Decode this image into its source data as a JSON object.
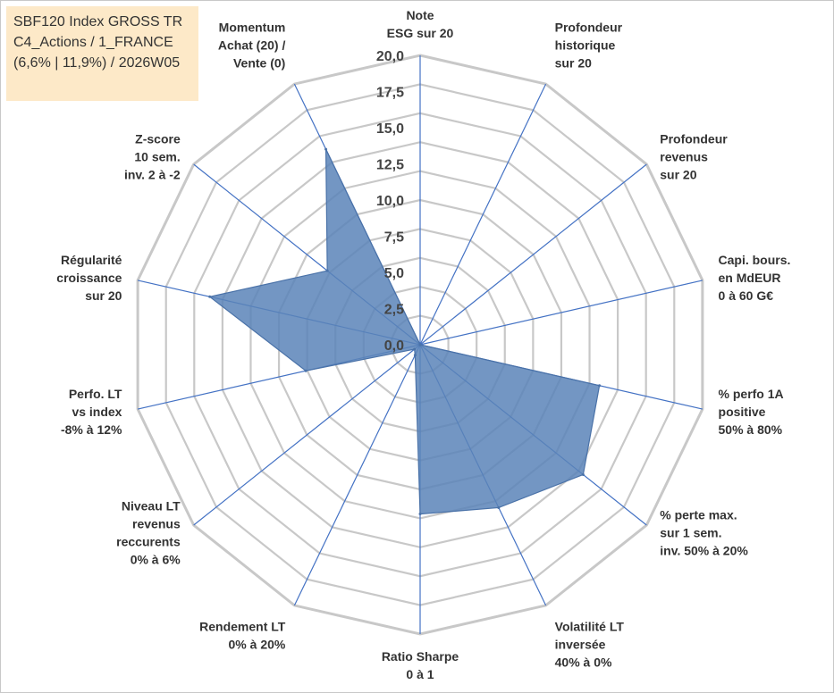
{
  "title_box": {
    "lines": [
      "SBF120 Index GROSS TR",
      "C4_Actions / 1_FRANCE",
      "(6,6% | 11,9%) / 2026W05"
    ]
  },
  "colors": {
    "fill": "#5b84b8",
    "stroke": "#4a72a8",
    "grid": "#c8c8c8",
    "spoke": "#4472c4"
  },
  "chart_data": {
    "type": "radar",
    "title": "SBF120 Index GROSS TR C4_Actions / 1_FRANCE (6,6% | 11,9%) / 2026W05",
    "rlim": [
      0,
      20
    ],
    "ticks": [
      "0,0",
      "2,5",
      "5,0",
      "7,5",
      "10,0",
      "12,5",
      "15,0",
      "17,5",
      "20,0"
    ],
    "grid_levels": 10,
    "categories": [
      [
        "Note",
        "ESG sur 20"
      ],
      [
        "Profondeur",
        "historique",
        "sur 20"
      ],
      [
        "Profondeur",
        "revenus",
        "sur 20"
      ],
      [
        "Capi. bours.",
        "en MdEUR",
        "0 à 60 G€"
      ],
      [
        "% perfo 1A",
        "positive",
        "50% à 80%"
      ],
      [
        "% perte max.",
        "sur 1 sem.",
        "inv. 50% à 20%"
      ],
      [
        "Volatilité LT",
        "inversée",
        "40% à 0%"
      ],
      [
        "Ratio Sharpe",
        "0 à 1"
      ],
      [
        "Rendement LT",
        "0% à 20%"
      ],
      [
        "Niveau LT",
        "revenus",
        "reccurents",
        "0% à 6%"
      ],
      [
        "Perfo. LT",
        "vs index",
        "-8% à 12%"
      ],
      [
        "Régularité",
        "croissance",
        "sur 20"
      ],
      [
        "Z-score",
        "10 sem.",
        "inv. 2 à -2"
      ],
      [
        "Momentum",
        "Achat (20) /",
        "Vente (0)"
      ]
    ],
    "series": [
      {
        "name": "SBF120 Index GROSS TR",
        "values": [
          0,
          0,
          0,
          0,
          12.7,
          14.4,
          12.5,
          11.7,
          0.8,
          0.5,
          8.1,
          14.9,
          8.2,
          15.0
        ]
      }
    ]
  }
}
